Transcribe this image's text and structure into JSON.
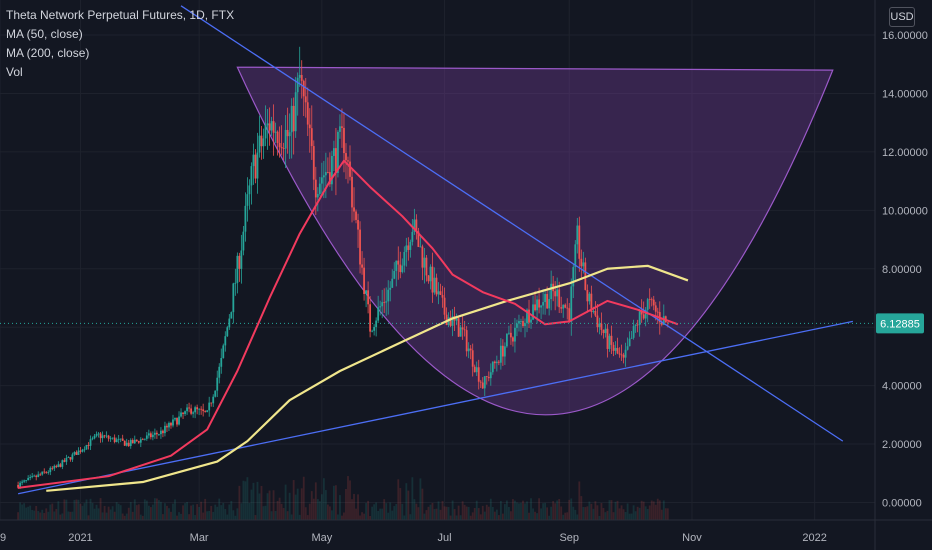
{
  "legend": {
    "title": "Theta Network Perpetual Futures, 1D, FTX",
    "ma50": "MA (50, close)",
    "ma200": "MA (200, close)",
    "vol": "Vol"
  },
  "currency": "USD",
  "colors": {
    "background": "#131722",
    "up": "#26a69a",
    "down": "#ef5350",
    "ma50": "#f23a5e",
    "ma200": "#f0e68c",
    "trendline": "#4c6ef5",
    "cup_fill": "#7b3fa0",
    "price_label": "#26a69a"
  },
  "chart_data": {
    "type": "candlestick",
    "y_ticks": [
      "16.00000",
      "14.00000",
      "12.00000",
      "10.00000",
      "8.00000",
      "6.00000",
      "4.00000",
      "2.00000",
      "0.00000"
    ],
    "x_ticks": [
      "9",
      "2021",
      "Mar",
      "May",
      "Jul",
      "Sep",
      "Nov",
      "2022"
    ],
    "last_price": "6.12885",
    "ylim": [
      -0.6,
      17.2
    ],
    "series": {
      "price_path": [
        {
          "date": "2020-12-01",
          "value": 0.6
        },
        {
          "date": "2020-12-20",
          "value": 1.2
        },
        {
          "date": "2021-01-01",
          "value": 1.8
        },
        {
          "date": "2021-01-10",
          "value": 2.3
        },
        {
          "date": "2021-01-25",
          "value": 2.0
        },
        {
          "date": "2021-02-10",
          "value": 2.4
        },
        {
          "date": "2021-02-25",
          "value": 3.2
        },
        {
          "date": "2021-03-05",
          "value": 3.0
        },
        {
          "date": "2021-03-12",
          "value": 4.8
        },
        {
          "date": "2021-03-20",
          "value": 8.0
        },
        {
          "date": "2021-03-28",
          "value": 11.5
        },
        {
          "date": "2021-04-05",
          "value": 13.0
        },
        {
          "date": "2021-04-15",
          "value": 12.5
        },
        {
          "date": "2021-04-20",
          "value": 14.5
        },
        {
          "date": "2021-04-28",
          "value": 11.0
        },
        {
          "date": "2021-05-05",
          "value": 11.5
        },
        {
          "date": "2021-05-12",
          "value": 12.5
        },
        {
          "date": "2021-05-20",
          "value": 8.5
        },
        {
          "date": "2021-05-25",
          "value": 6.0
        },
        {
          "date": "2021-06-05",
          "value": 7.5
        },
        {
          "date": "2021-06-15",
          "value": 9.5
        },
        {
          "date": "2021-06-22",
          "value": 8.0
        },
        {
          "date": "2021-07-01",
          "value": 6.5
        },
        {
          "date": "2021-07-10",
          "value": 5.8
        },
        {
          "date": "2021-07-20",
          "value": 4.0
        },
        {
          "date": "2021-08-01",
          "value": 5.5
        },
        {
          "date": "2021-08-15",
          "value": 6.8
        },
        {
          "date": "2021-08-25",
          "value": 7.2
        },
        {
          "date": "2021-09-01",
          "value": 6.5
        },
        {
          "date": "2021-09-05",
          "value": 9.0
        },
        {
          "date": "2021-09-10",
          "value": 7.0
        },
        {
          "date": "2021-09-20",
          "value": 5.5
        },
        {
          "date": "2021-09-28",
          "value": 4.8
        },
        {
          "date": "2021-10-05",
          "value": 6.2
        },
        {
          "date": "2021-10-10",
          "value": 6.8
        },
        {
          "date": "2021-10-20",
          "value": 6.1
        }
      ],
      "ma50": [
        {
          "date": "2020-12-01",
          "value": 0.5
        },
        {
          "date": "2021-01-15",
          "value": 0.9
        },
        {
          "date": "2021-02-15",
          "value": 1.6
        },
        {
          "date": "2021-03-05",
          "value": 2.5
        },
        {
          "date": "2021-03-20",
          "value": 4.5
        },
        {
          "date": "2021-04-05",
          "value": 7.0
        },
        {
          "date": "2021-04-20",
          "value": 9.2
        },
        {
          "date": "2021-05-05",
          "value": 11.0
        },
        {
          "date": "2021-05-12",
          "value": 11.7
        },
        {
          "date": "2021-05-25",
          "value": 10.8
        },
        {
          "date": "2021-06-10",
          "value": 9.8
        },
        {
          "date": "2021-06-25",
          "value": 8.7
        },
        {
          "date": "2021-07-05",
          "value": 7.8
        },
        {
          "date": "2021-07-20",
          "value": 7.2
        },
        {
          "date": "2021-08-05",
          "value": 6.8
        },
        {
          "date": "2021-08-20",
          "value": 6.1
        },
        {
          "date": "2021-09-01",
          "value": 6.2
        },
        {
          "date": "2021-09-20",
          "value": 6.9
        },
        {
          "date": "2021-10-05",
          "value": 6.6
        },
        {
          "date": "2021-10-25",
          "value": 6.1
        }
      ],
      "ma200": [
        {
          "date": "2020-12-15",
          "value": 0.4
        },
        {
          "date": "2021-02-01",
          "value": 0.7
        },
        {
          "date": "2021-03-10",
          "value": 1.4
        },
        {
          "date": "2021-03-25",
          "value": 2.1
        },
        {
          "date": "2021-04-15",
          "value": 3.5
        },
        {
          "date": "2021-05-10",
          "value": 4.5
        },
        {
          "date": "2021-06-10",
          "value": 5.5
        },
        {
          "date": "2021-07-05",
          "value": 6.3
        },
        {
          "date": "2021-08-01",
          "value": 6.9
        },
        {
          "date": "2021-09-01",
          "value": 7.5
        },
        {
          "date": "2021-09-20",
          "value": 8.0
        },
        {
          "date": "2021-10-10",
          "value": 8.1
        },
        {
          "date": "2021-10-30",
          "value": 7.6
        }
      ],
      "trend_down": [
        {
          "date": "2021-02-20",
          "value": 17.0
        },
        {
          "date": "2022-01-15",
          "value": 2.1
        }
      ],
      "trend_up": [
        {
          "date": "2020-12-01",
          "value": 0.3
        },
        {
          "date": "2022-01-20",
          "value": 6.2
        }
      ],
      "cup_rim": [
        {
          "date": "2021-03-20",
          "value": 14.9
        },
        {
          "date": "2022-01-10",
          "value": 14.8
        }
      ],
      "cup_bottom": {
        "date": "2021-08-25",
        "value": 3.0
      }
    }
  }
}
